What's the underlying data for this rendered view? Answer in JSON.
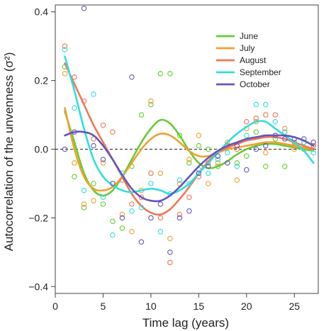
{
  "chart_data": {
    "type": "scatter",
    "title": "",
    "xlabel": "Time lag (years)",
    "ylabel": "Autocorrelation of the unvenness (σ²)",
    "xlim": [
      0,
      27.5
    ],
    "ylim": [
      -0.42,
      0.42
    ],
    "x_ticks": [
      0,
      5,
      10,
      15,
      20,
      25
    ],
    "y_ticks": [
      -0.4,
      -0.2,
      0.0,
      0.2,
      0.4
    ],
    "x_tick_labels": [
      "0",
      "5",
      "10",
      "15",
      "20",
      "25"
    ],
    "y_tick_labels": [
      "−0.4",
      "−0.2",
      "0.0",
      "0.2",
      "0.4"
    ],
    "reference_line": {
      "y": 0,
      "style": "dashed"
    },
    "legend_position": "top-right",
    "series": [
      {
        "name": "June",
        "color": "#66cc33",
        "points": [
          [
            1,
            0.24
          ],
          [
            2,
            -0.08
          ],
          [
            3,
            -0.17
          ],
          [
            4,
            -0.1
          ],
          [
            5,
            -0.16
          ],
          [
            6,
            -0.21
          ],
          [
            7,
            -0.23
          ],
          [
            8,
            -0.05
          ],
          [
            9,
            0.1
          ],
          [
            10,
            0.13
          ],
          [
            11,
            0.22
          ],
          [
            12,
            0.22
          ],
          [
            13,
            0.04
          ],
          [
            14,
            -0.04
          ],
          [
            15,
            0.01
          ],
          [
            16,
            0.0
          ],
          [
            17,
            -0.05
          ],
          [
            18,
            0.01
          ],
          [
            19,
            -0.04
          ],
          [
            20,
            -0.02
          ],
          [
            21,
            0.05
          ],
          [
            22,
            -0.05
          ],
          [
            23,
            0.03
          ],
          [
            24,
            -0.05
          ],
          [
            25,
            0.01
          ],
          [
            26,
            0.0
          ],
          [
            27,
            0.01
          ]
        ],
        "smooth": [
          [
            1,
            0.11
          ],
          [
            2,
            0.02
          ],
          [
            3,
            -0.07
          ],
          [
            4,
            -0.12
          ],
          [
            5,
            -0.135
          ],
          [
            6,
            -0.12
          ],
          [
            7,
            -0.08
          ],
          [
            8,
            -0.03
          ],
          [
            9,
            0.02
          ],
          [
            10,
            0.06
          ],
          [
            11,
            0.085
          ],
          [
            12,
            0.075
          ],
          [
            13,
            0.04
          ],
          [
            14,
            -0.005
          ],
          [
            15,
            -0.04
          ],
          [
            16,
            -0.055
          ],
          [
            17,
            -0.05
          ],
          [
            18,
            -0.035
          ],
          [
            19,
            -0.015
          ],
          [
            20,
            0.0
          ],
          [
            21,
            0.01
          ],
          [
            22,
            0.015
          ],
          [
            23,
            0.015
          ],
          [
            24,
            0.01
          ],
          [
            25,
            0.005
          ],
          [
            26,
            0.0
          ],
          [
            27,
            -0.005
          ]
        ]
      },
      {
        "name": "July",
        "color": "#f0a030",
        "points": [
          [
            1,
            0.22
          ],
          [
            2,
            -0.04
          ],
          [
            3,
            -0.16
          ],
          [
            4,
            -0.15
          ],
          [
            5,
            -0.04
          ],
          [
            6,
            -0.1
          ],
          [
            7,
            -0.19
          ],
          [
            8,
            -0.24
          ],
          [
            9,
            -0.12
          ],
          [
            10,
            0.14
          ],
          [
            11,
            -0.07
          ],
          [
            12,
            -0.26
          ],
          [
            13,
            -0.1
          ],
          [
            14,
            -0.03
          ],
          [
            15,
            0.04
          ],
          [
            16,
            -0.1
          ],
          [
            17,
            -0.04
          ],
          [
            18,
            0.02
          ],
          [
            19,
            -0.09
          ],
          [
            20,
            0.06
          ],
          [
            21,
            0.08
          ],
          [
            22,
            -0.01
          ],
          [
            23,
            0.04
          ],
          [
            24,
            0.06
          ],
          [
            25,
            0.0
          ],
          [
            26,
            0.0
          ],
          [
            27,
            0.01
          ]
        ],
        "smooth": [
          [
            1,
            0.12
          ],
          [
            2,
            0.0
          ],
          [
            3,
            -0.08
          ],
          [
            4,
            -0.115
          ],
          [
            5,
            -0.12
          ],
          [
            6,
            -0.11
          ],
          [
            7,
            -0.08
          ],
          [
            8,
            -0.04
          ],
          [
            9,
            0.0
          ],
          [
            10,
            0.03
          ],
          [
            11,
            0.045
          ],
          [
            12,
            0.04
          ],
          [
            13,
            0.02
          ],
          [
            14,
            -0.005
          ],
          [
            15,
            -0.02
          ],
          [
            16,
            -0.02
          ],
          [
            17,
            -0.01
          ],
          [
            18,
            0.0
          ],
          [
            19,
            0.005
          ],
          [
            20,
            0.01
          ],
          [
            21,
            0.015
          ],
          [
            22,
            0.02
          ],
          [
            23,
            0.02
          ],
          [
            24,
            0.015
          ],
          [
            25,
            0.01
          ],
          [
            26,
            0.005
          ],
          [
            27,
            0.0
          ]
        ]
      },
      {
        "name": "August",
        "color": "#ee7755",
        "points": [
          [
            1,
            0.3
          ],
          [
            2,
            0.21
          ],
          [
            3,
            0.14
          ],
          [
            4,
            0.03
          ],
          [
            5,
            0.07
          ],
          [
            6,
            0.05
          ],
          [
            7,
            -0.09
          ],
          [
            8,
            -0.16
          ],
          [
            9,
            -0.14
          ],
          [
            10,
            -0.07
          ],
          [
            11,
            -0.2
          ],
          [
            12,
            -0.33
          ],
          [
            13,
            -0.19
          ],
          [
            14,
            -0.14
          ],
          [
            15,
            -0.08
          ],
          [
            16,
            -0.04
          ],
          [
            17,
            -0.02
          ],
          [
            18,
            0.01
          ],
          [
            19,
            0.0
          ],
          [
            20,
            0.08
          ],
          [
            21,
            0.09
          ],
          [
            22,
            0.1
          ],
          [
            23,
            0.1
          ],
          [
            24,
            0.05
          ],
          [
            25,
            0.02
          ],
          [
            26,
            0.02
          ],
          [
            27,
            0.01
          ]
        ],
        "smooth": [
          [
            1,
            0.25
          ],
          [
            2,
            0.19
          ],
          [
            3,
            0.13
          ],
          [
            4,
            0.07
          ],
          [
            5,
            0.02
          ],
          [
            6,
            -0.03
          ],
          [
            7,
            -0.08
          ],
          [
            8,
            -0.13
          ],
          [
            9,
            -0.165
          ],
          [
            10,
            -0.185
          ],
          [
            11,
            -0.19
          ],
          [
            12,
            -0.175
          ],
          [
            13,
            -0.145
          ],
          [
            14,
            -0.11
          ],
          [
            15,
            -0.07
          ],
          [
            16,
            -0.035
          ],
          [
            17,
            -0.01
          ],
          [
            18,
            0.005
          ],
          [
            19,
            0.015
          ],
          [
            20,
            0.025
          ],
          [
            21,
            0.03
          ],
          [
            22,
            0.035
          ],
          [
            23,
            0.035
          ],
          [
            24,
            0.03
          ],
          [
            25,
            0.02
          ],
          [
            26,
            0.01
          ],
          [
            27,
            0.0
          ]
        ]
      },
      {
        "name": "September",
        "color": "#33dddd",
        "points": [
          [
            1,
            0.29
          ],
          [
            2,
            0.12
          ],
          [
            3,
            -0.12
          ],
          [
            4,
            0.16
          ],
          [
            5,
            -0.14
          ],
          [
            6,
            -0.25
          ],
          [
            7,
            -0.07
          ],
          [
            8,
            -0.18
          ],
          [
            9,
            -0.17
          ],
          [
            10,
            -0.1
          ],
          [
            11,
            -0.24
          ],
          [
            12,
            -0.13
          ],
          [
            13,
            -0.09
          ],
          [
            14,
            -0.1
          ],
          [
            15,
            -0.06
          ],
          [
            16,
            -0.07
          ],
          [
            17,
            -0.03
          ],
          [
            18,
            -0.01
          ],
          [
            19,
            -0.05
          ],
          [
            20,
            0.04
          ],
          [
            21,
            0.13
          ],
          [
            22,
            0.13
          ],
          [
            23,
            0.08
          ],
          [
            24,
            0.05
          ],
          [
            25,
            0.03
          ],
          [
            26,
            0.02
          ],
          [
            27,
            -0.01
          ]
        ],
        "smooth": [
          [
            1,
            0.27
          ],
          [
            2,
            0.17
          ],
          [
            3,
            0.06
          ],
          [
            4,
            -0.03
          ],
          [
            5,
            -0.08
          ],
          [
            6,
            -0.105
          ],
          [
            7,
            -0.12
          ],
          [
            8,
            -0.125
          ],
          [
            9,
            -0.12
          ],
          [
            10,
            -0.115
          ],
          [
            11,
            -0.12
          ],
          [
            12,
            -0.13
          ],
          [
            13,
            -0.12
          ],
          [
            14,
            -0.1
          ],
          [
            15,
            -0.07
          ],
          [
            16,
            -0.04
          ],
          [
            17,
            -0.01
          ],
          [
            18,
            0.02
          ],
          [
            19,
            0.045
          ],
          [
            20,
            0.065
          ],
          [
            21,
            0.08
          ],
          [
            22,
            0.08
          ],
          [
            23,
            0.06
          ],
          [
            24,
            0.04
          ],
          [
            25,
            0.02
          ],
          [
            26,
            -0.005
          ],
          [
            27,
            -0.04
          ]
        ]
      },
      {
        "name": "October",
        "color": "#6655bb",
        "points": [
          [
            1,
            0.0
          ],
          [
            2,
            0.05
          ],
          [
            3,
            0.41
          ],
          [
            4,
            0.01
          ],
          [
            5,
            -0.03
          ],
          [
            6,
            -0.1
          ],
          [
            7,
            -0.2
          ],
          [
            8,
            0.21
          ],
          [
            9,
            -0.27
          ],
          [
            10,
            -0.2
          ],
          [
            11,
            -0.16
          ],
          [
            12,
            -0.3
          ],
          [
            13,
            -0.2
          ],
          [
            14,
            -0.18
          ],
          [
            15,
            -0.07
          ],
          [
            16,
            -0.05
          ],
          [
            17,
            -0.02
          ],
          [
            18,
            -0.04
          ],
          [
            19,
            0.01
          ],
          [
            20,
            -0.06
          ],
          [
            21,
            0.0
          ],
          [
            22,
            0.01
          ],
          [
            23,
            0.04
          ],
          [
            24,
            0.03
          ],
          [
            25,
            0.03
          ],
          [
            26,
            0.03
          ],
          [
            27,
            0.02
          ]
        ],
        "smooth": [
          [
            1,
            0.04
          ],
          [
            2,
            0.05
          ],
          [
            3,
            0.05
          ],
          [
            4,
            0.04
          ],
          [
            5,
            0.01
          ],
          [
            6,
            -0.03
          ],
          [
            7,
            -0.075
          ],
          [
            8,
            -0.115
          ],
          [
            9,
            -0.14
          ],
          [
            10,
            -0.15
          ],
          [
            11,
            -0.15
          ],
          [
            12,
            -0.135
          ],
          [
            13,
            -0.11
          ],
          [
            14,
            -0.08
          ],
          [
            15,
            -0.05
          ],
          [
            16,
            -0.025
          ],
          [
            17,
            -0.005
          ],
          [
            18,
            0.01
          ],
          [
            19,
            0.02
          ],
          [
            20,
            0.03
          ],
          [
            21,
            0.035
          ],
          [
            22,
            0.04
          ],
          [
            23,
            0.04
          ],
          [
            24,
            0.04
          ],
          [
            25,
            0.035
          ],
          [
            26,
            0.025
          ],
          [
            27,
            0.01
          ]
        ]
      }
    ]
  }
}
